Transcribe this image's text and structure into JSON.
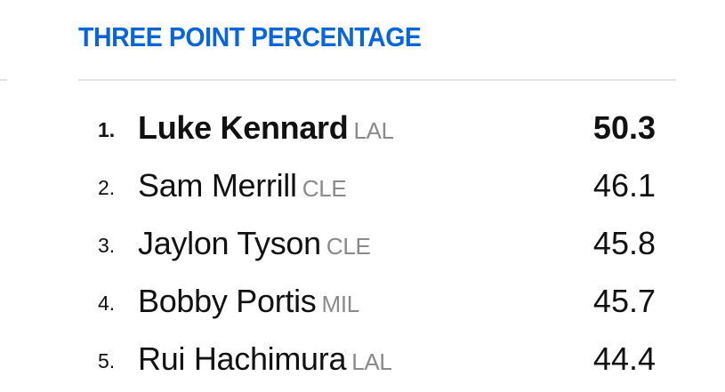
{
  "title": "THREE POINT PERCENTAGE",
  "accent_color": "#0a66d8",
  "leaders": [
    {
      "rank": "1.",
      "name": "Luke Kennard",
      "team": "LAL",
      "value": "50.3"
    },
    {
      "rank": "2.",
      "name": "Sam Merrill",
      "team": "CLE",
      "value": "46.1"
    },
    {
      "rank": "3.",
      "name": "Jaylon Tyson",
      "team": "CLE",
      "value": "45.8"
    },
    {
      "rank": "4.",
      "name": "Bobby Portis",
      "team": "MIL",
      "value": "45.7"
    },
    {
      "rank": "5.",
      "name": "Rui Hachimura",
      "team": "LAL",
      "value": "44.4"
    }
  ]
}
